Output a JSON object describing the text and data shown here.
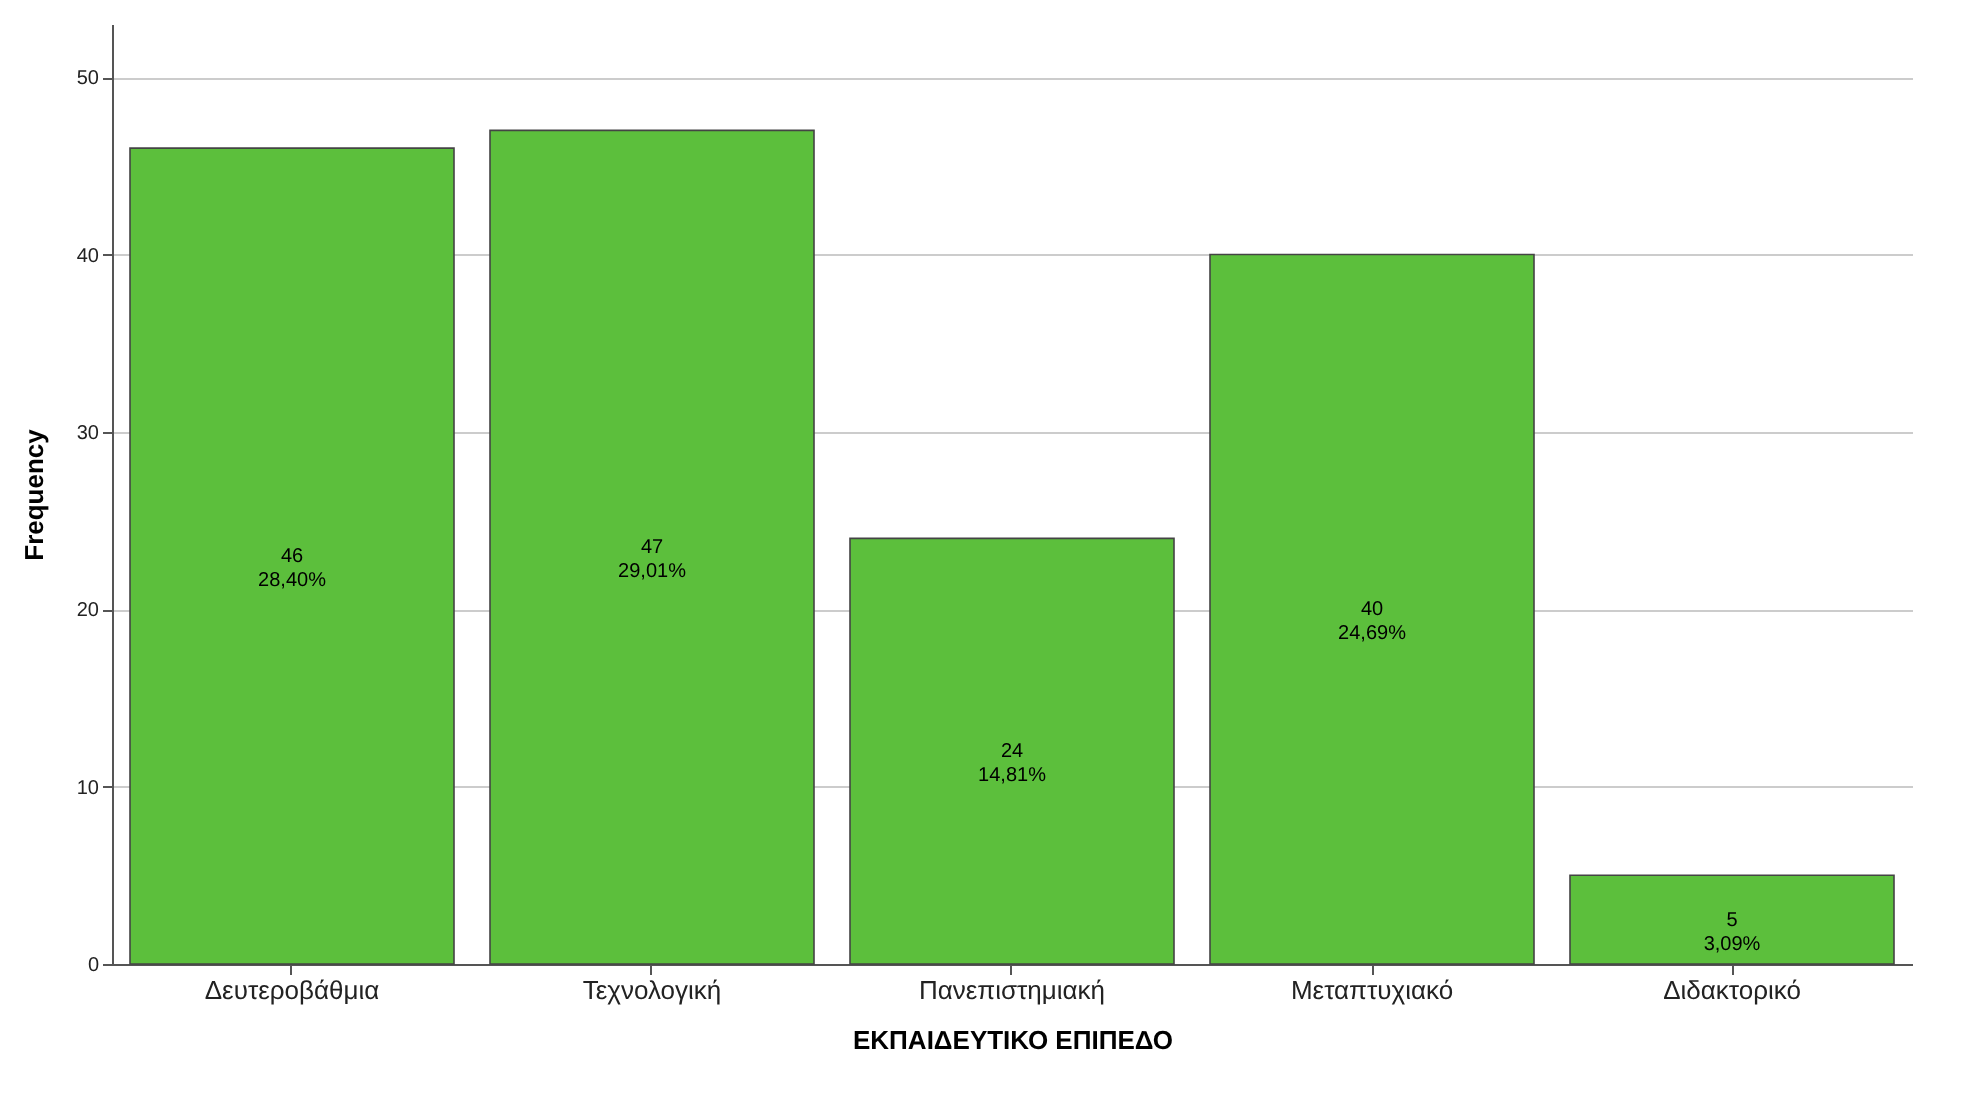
{
  "chart_data": {
    "type": "bar",
    "xlabel": "ΕΚΠΑΙΔΕΥΤΙΚΟ ΕΠΙΠΕΔΟ",
    "ylabel": "Frequency",
    "categories": [
      "Δευτεροβάθμια",
      "Τεχνολογική",
      "Πανεπιστημιακή",
      "Μεταπτυχιακό",
      "Διδακτορικό"
    ],
    "values": [
      46,
      47,
      24,
      40,
      5
    ],
    "color": "#5cbf3c",
    "value_labels": [
      "46\n28,40%",
      "47\n29,01%",
      "24\n14,81%",
      "40\n24,69%",
      "5\n3,09%"
    ],
    "ylim": [
      0,
      53
    ],
    "yticks": [
      0,
      10,
      20,
      30,
      40,
      50
    ],
    "grid": "y"
  }
}
